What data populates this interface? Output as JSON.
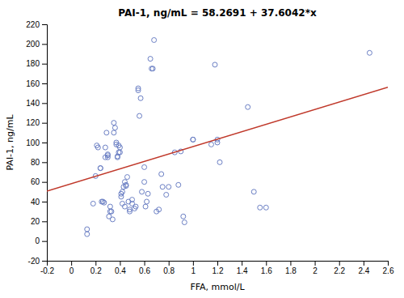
{
  "chart_data": {
    "type": "scatter",
    "title": "PAI-1, ng/mL = 58.2691 + 37.6042*x",
    "xlabel": "FFA, mmol/L",
    "ylabel": "PAI-1, ng/mL",
    "xlim": [
      -0.2,
      2.6
    ],
    "ylim": [
      -20,
      220
    ],
    "xticks": [
      -0.2,
      0,
      0.2,
      0.4,
      0.6,
      0.8,
      1,
      1.2,
      1.4,
      1.6,
      1.8,
      2,
      2.2,
      2.4,
      2.6
    ],
    "yticks": [
      -20,
      0,
      20,
      40,
      60,
      80,
      100,
      120,
      140,
      160,
      180,
      200,
      220
    ],
    "grid": false,
    "series": [
      {
        "type": "scatter",
        "marker": "circle",
        "color": "#6b7fc4",
        "x": [
          0.13,
          0.13,
          0.18,
          0.2,
          0.21,
          0.22,
          0.24,
          0.24,
          0.25,
          0.26,
          0.27,
          0.28,
          0.28,
          0.29,
          0.3,
          0.3,
          0.3,
          0.31,
          0.32,
          0.32,
          0.33,
          0.34,
          0.35,
          0.35,
          0.36,
          0.37,
          0.37,
          0.38,
          0.38,
          0.39,
          0.39,
          0.4,
          0.4,
          0.41,
          0.41,
          0.42,
          0.42,
          0.43,
          0.44,
          0.44,
          0.45,
          0.45,
          0.46,
          0.47,
          0.48,
          0.48,
          0.5,
          0.5,
          0.52,
          0.53,
          0.55,
          0.55,
          0.56,
          0.57,
          0.58,
          0.6,
          0.6,
          0.61,
          0.62,
          0.63,
          0.65,
          0.66,
          0.67,
          0.68,
          0.7,
          0.72,
          0.74,
          0.75,
          0.78,
          0.8,
          0.85,
          0.88,
          0.9,
          0.92,
          0.93,
          1.0,
          1.0,
          1.15,
          1.18,
          1.2,
          1.2,
          1.22,
          1.45,
          1.5,
          1.55,
          1.6,
          2.45
        ],
        "values": [
          12,
          7,
          38,
          66,
          97,
          95,
          74,
          74,
          40,
          40,
          39,
          85,
          95,
          110,
          85,
          87,
          88,
          25,
          30,
          35,
          30,
          22,
          110,
          120,
          115,
          100,
          98,
          85,
          86,
          90,
          97,
          90,
          95,
          45,
          48,
          50,
          38,
          55,
          60,
          35,
          56,
          57,
          65,
          40,
          30,
          32,
          38,
          42,
          33,
          35,
          155,
          153,
          127,
          145,
          50,
          75,
          60,
          35,
          40,
          48,
          185,
          175,
          175,
          204,
          30,
          32,
          68,
          55,
          47,
          55,
          90,
          57,
          91,
          25,
          19,
          103,
          103,
          98,
          179,
          103,
          100,
          80,
          136,
          50,
          34,
          34,
          191
        ]
      },
      {
        "type": "line",
        "line_style": "solid",
        "color": "#c0392b",
        "x": [
          -0.2,
          2.6
        ],
        "values": [
          50.74826,
          156.04002
        ]
      }
    ]
  }
}
